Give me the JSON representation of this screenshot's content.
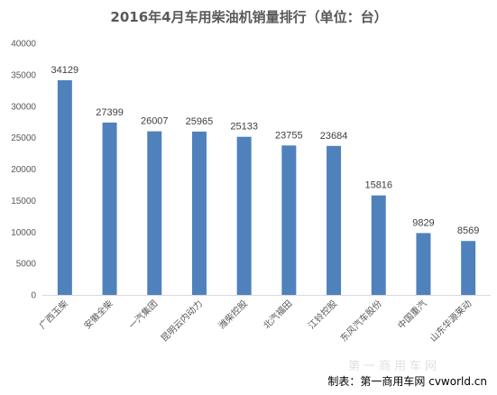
{
  "chart_data": {
    "type": "bar",
    "title": "2016年4月车用柴油机销量排行（单位：台）",
    "categories": [
      "广西玉柴",
      "安徽全柴",
      "一汽集团",
      "昆明云内动力",
      "潍柴控股",
      "北汽福田",
      "江铃控股",
      "东风汽车股份",
      "中国重汽",
      "山东华源莱动"
    ],
    "values": [
      34129,
      27399,
      26007,
      25965,
      25133,
      23755,
      23684,
      15816,
      9829,
      8569
    ],
    "ylim": [
      0,
      40000
    ],
    "yticks": [
      0,
      5000,
      10000,
      15000,
      20000,
      25000,
      30000,
      35000,
      40000
    ],
    "xlabel": "",
    "ylabel": "",
    "grid": false,
    "legend": "none",
    "bar_color": "#4f81bd"
  },
  "footer": {
    "source": "制表：第一商用车网 cvworld.cn",
    "watermark": "第一商用车网"
  }
}
